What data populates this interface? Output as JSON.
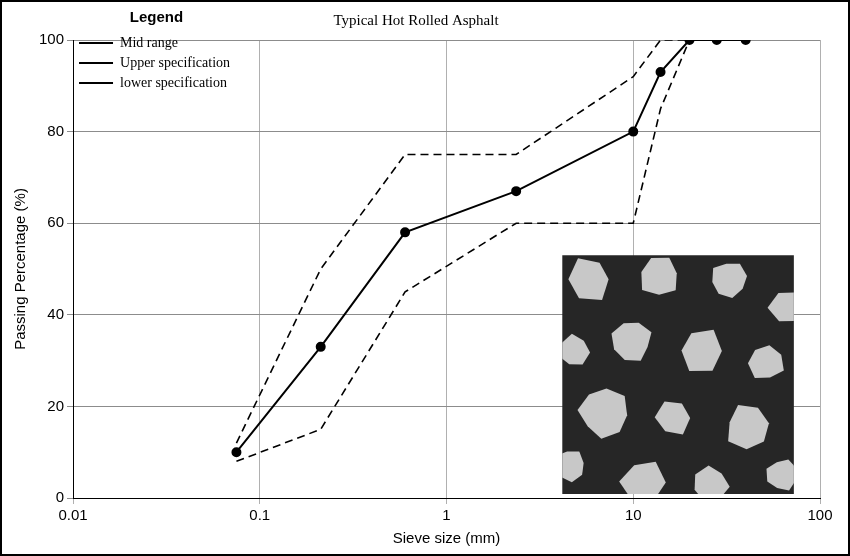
{
  "chart_data": {
    "type": "line",
    "title": "Typical Hot Rolled Asphalt",
    "x_label": "Sieve size (mm)",
    "y_label": "Passing Percentage (%)",
    "legend_title": "Legend",
    "legend": "upper left",
    "log": "x",
    "grid": true,
    "xlim": [
      0.01,
      100
    ],
    "xticks": [
      0.01,
      0.1,
      1,
      10,
      100
    ],
    "ylim": [
      0,
      100
    ],
    "yticks": [
      0,
      20,
      40,
      60,
      80,
      100
    ],
    "series": [
      {
        "name": "Mid range",
        "color": "#000000",
        "marker": "circle",
        "line_style": "solid",
        "x": [
          0.075,
          0.212,
          0.6,
          2.36,
          10,
          14,
          20,
          28,
          40
        ],
        "values": [
          10,
          33,
          58,
          67,
          80,
          93,
          100,
          100,
          100
        ]
      },
      {
        "name": "Upper specification",
        "color": "#000000",
        "marker": "none",
        "line_style": "dashed",
        "x": [
          0.075,
          0.212,
          0.6,
          2.36,
          10,
          14,
          20
        ],
        "values": [
          12,
          50,
          75,
          75,
          92,
          100,
          100
        ]
      },
      {
        "name": "lower specification",
        "color": "#000000",
        "marker": "none",
        "line_style": "dashed",
        "x": [
          0.075,
          0.212,
          0.6,
          2.36,
          10,
          14,
          20
        ],
        "values": [
          8,
          15,
          45,
          60,
          60,
          85,
          100
        ]
      }
    ]
  }
}
